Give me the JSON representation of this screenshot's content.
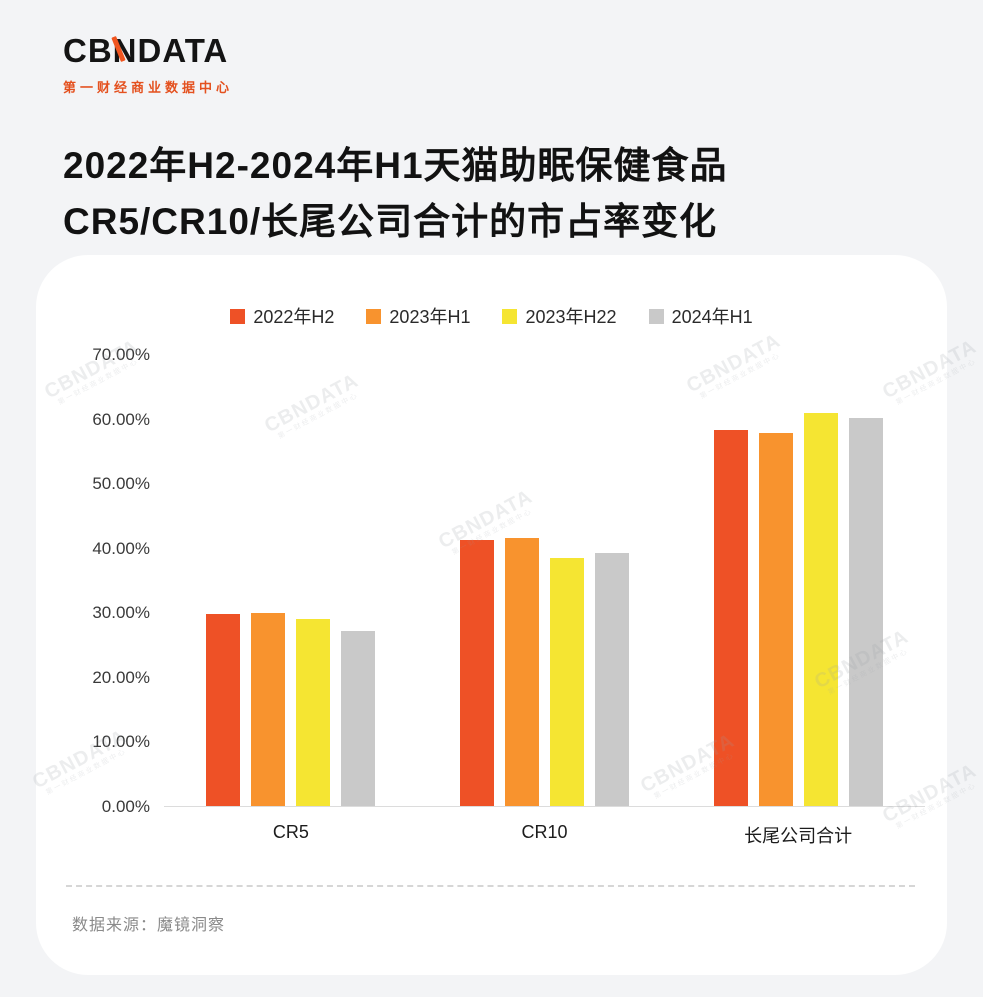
{
  "logo": {
    "brand": "CBNDATA",
    "tagline": "第一财经商业数据中心"
  },
  "title": {
    "line1": "2022年H2-2024年H1天猫助眠保健食品",
    "line2": "CR5/CR10/长尾公司合计的市占率变化"
  },
  "watermark": {
    "brand": "CBNDATA",
    "sub": "第一财经商业数据中心"
  },
  "footer": {
    "source": "数据来源：魔镜洞察"
  },
  "chart_data": {
    "type": "bar",
    "categories": [
      "CR5",
      "CR10",
      "长尾公司合计"
    ],
    "series": [
      {
        "name": "2022年H2",
        "color": "#ee5126",
        "values": [
          29.8,
          41.3,
          58.4
        ]
      },
      {
        "name": "2023年H1",
        "color": "#f8932e",
        "values": [
          29.9,
          41.6,
          57.9
        ]
      },
      {
        "name": "2023年H22",
        "color": "#f5e532",
        "values": [
          29.1,
          38.5,
          61.0
        ]
      },
      {
        "name": "2024年H1",
        "color": "#c9c9c9",
        "values": [
          27.2,
          39.3,
          60.3
        ]
      }
    ],
    "title": "2022年H2-2024年H1天猫助眠保健食品CR5/CR10/长尾公司合计的市占率变化",
    "xlabel": "",
    "ylabel": "",
    "ylim": [
      0,
      70
    ],
    "yticks": [
      "70.00%",
      "60.00%",
      "50.00%",
      "40.00%",
      "30.00%",
      "20.00%",
      "10.00%",
      "0.00%"
    ],
    "grid": false,
    "legend_position": "top"
  }
}
